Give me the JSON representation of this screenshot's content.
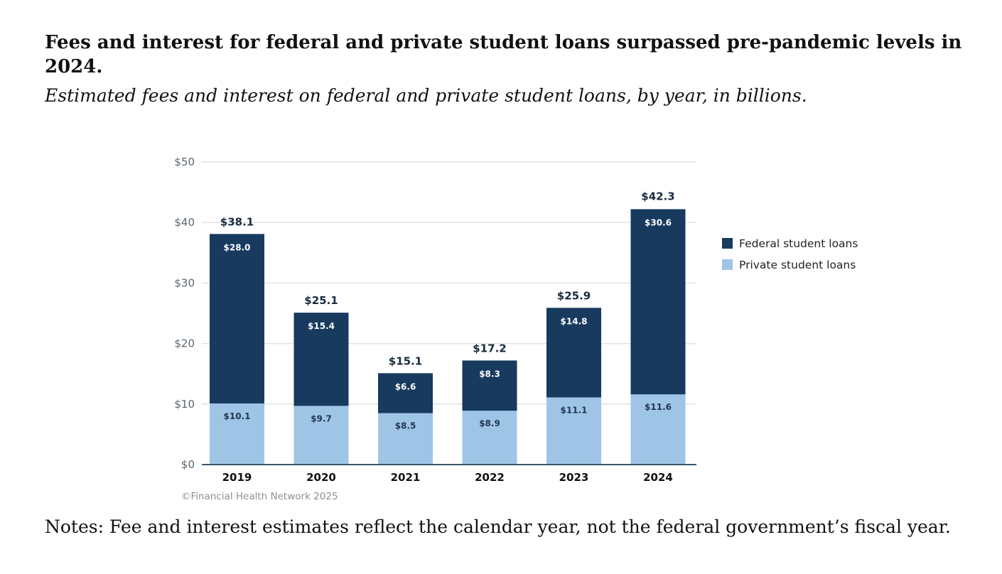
{
  "title": "Fees and interest for federal and private student loans surpassed pre-pandemic levels in 2024.",
  "subtitle": "Estimated fees and interest on federal and private student loans, by year, in billions.",
  "notes": "Notes: Fee and interest estimates reflect the calendar year, not the federal government’s fiscal year.",
  "chart_data": {
    "type": "bar",
    "stacked": true,
    "categories": [
      "2019",
      "2020",
      "2021",
      "2022",
      "2023",
      "2024"
    ],
    "series": [
      {
        "name": "Private student loans",
        "color": "#9fc5e6",
        "values": [
          10.1,
          9.7,
          8.5,
          8.9,
          11.1,
          11.6
        ],
        "labels": [
          "$10.1",
          "$9.7",
          "$8.5",
          "$8.9",
          "$11.1",
          "$11.6"
        ]
      },
      {
        "name": "Federal student loans",
        "color": "#173a5e",
        "values": [
          28.0,
          15.4,
          6.6,
          8.3,
          14.8,
          30.6
        ],
        "labels": [
          "$28.0",
          "$15.4",
          "$6.6",
          "$8.3",
          "$14.8",
          "$30.6"
        ]
      }
    ],
    "totals": [
      38.1,
      25.1,
      15.1,
      17.2,
      25.9,
      42.3
    ],
    "total_labels": [
      "$38.1",
      "$25.1",
      "$15.1",
      "$17.2",
      "$25.9",
      "$42.3"
    ],
    "ylim": [
      0,
      50
    ],
    "yticks": [
      0,
      10,
      20,
      30,
      40,
      50
    ],
    "ytick_labels": [
      "$0",
      "$10",
      "$20",
      "$30",
      "$40",
      "$50"
    ],
    "legend": [
      "Federal student loans",
      "Private student loans"
    ],
    "legend_position": "right",
    "grid": true,
    "source": "©Financial Health Network 2025"
  }
}
